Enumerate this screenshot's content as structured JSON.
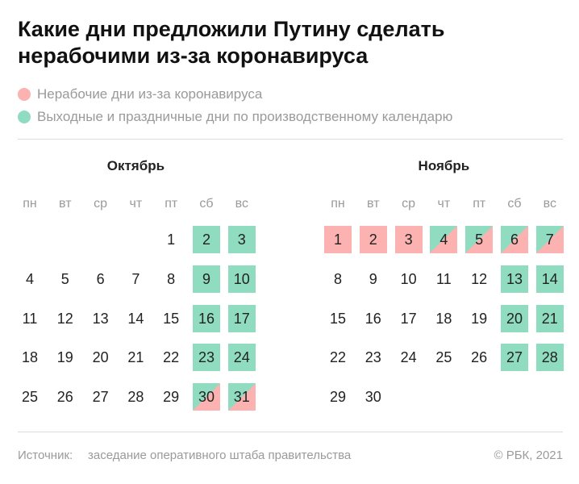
{
  "title": "Какие дни предложили Путину сделать нерабочими из-за коронавируса",
  "legend": [
    {
      "label": "Нерабочие дни из-за коронавируса",
      "color": "#fbb2b0",
      "kind": "nonworking"
    },
    {
      "label": "Выходные и праздничные дни по производственному календарю",
      "color": "#8fdcc0",
      "kind": "weekend"
    }
  ],
  "months": [
    {
      "name": "Октябрь",
      "weekdays": [
        "пн",
        "вт",
        "ср",
        "чт",
        "пт",
        "сб",
        "вс"
      ],
      "weeks": [
        [
          null,
          null,
          null,
          null,
          1,
          2,
          3
        ],
        [
          4,
          5,
          6,
          7,
          8,
          9,
          10
        ],
        [
          11,
          12,
          13,
          14,
          15,
          16,
          17
        ],
        [
          18,
          19,
          20,
          21,
          22,
          23,
          24
        ],
        [
          25,
          26,
          27,
          28,
          29,
          30,
          31
        ]
      ],
      "kinds": [
        [
          null,
          null,
          null,
          null,
          null,
          "weekend",
          "weekend"
        ],
        [
          null,
          null,
          null,
          null,
          null,
          "weekend",
          "weekend"
        ],
        [
          null,
          null,
          null,
          null,
          null,
          "weekend",
          "weekend"
        ],
        [
          null,
          null,
          null,
          null,
          null,
          "weekend",
          "weekend"
        ],
        [
          null,
          null,
          null,
          null,
          null,
          "both",
          "both"
        ]
      ]
    },
    {
      "name": "Ноябрь",
      "weekdays": [
        "пн",
        "вт",
        "ср",
        "чт",
        "пт",
        "сб",
        "вс"
      ],
      "weeks": [
        [
          1,
          2,
          3,
          4,
          5,
          6,
          7
        ],
        [
          8,
          9,
          10,
          11,
          12,
          13,
          14
        ],
        [
          15,
          16,
          17,
          18,
          19,
          20,
          21
        ],
        [
          22,
          23,
          24,
          25,
          26,
          27,
          28
        ],
        [
          29,
          30,
          null,
          null,
          null,
          null,
          null
        ]
      ],
      "kinds": [
        [
          "nonworking",
          "nonworking",
          "nonworking",
          "both",
          "both",
          "both",
          "both"
        ],
        [
          null,
          null,
          null,
          null,
          null,
          "weekend",
          "weekend"
        ],
        [
          null,
          null,
          null,
          null,
          null,
          "weekend",
          "weekend"
        ],
        [
          null,
          null,
          null,
          null,
          null,
          "weekend",
          "weekend"
        ],
        [
          null,
          null,
          null,
          null,
          null,
          null,
          null
        ]
      ]
    }
  ],
  "footer": {
    "source_label": "Источник:",
    "source": "заседание оперативного штаба правительства",
    "copyright": "© РБК, 2021"
  }
}
